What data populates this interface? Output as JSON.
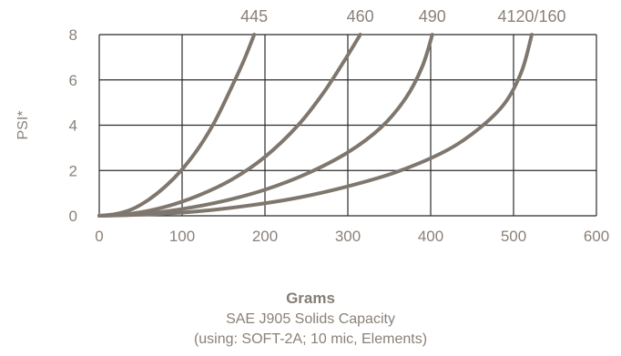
{
  "chart_data": {
    "type": "line",
    "title": "",
    "xlabel": "Grams",
    "ylabel": "PSI*",
    "subtitle_lines": [
      "SAE J905 Solids Capacity",
      "(using: SOFT-2A; 10 mic, Elements)"
    ],
    "xlim": [
      0,
      600
    ],
    "ylim": [
      0,
      8
    ],
    "xticks": [
      0,
      100,
      200,
      300,
      400,
      500,
      600
    ],
    "yticks": [
      0,
      2,
      4,
      6,
      8
    ],
    "grid": true,
    "line_color": "#7f776e",
    "series": [
      {
        "name": "445",
        "x": [
          0,
          20,
          40,
          60,
          80,
          100,
          120,
          140,
          160,
          175,
          187
        ],
        "y": [
          0,
          0.08,
          0.3,
          0.72,
          1.3,
          2.05,
          3.0,
          4.2,
          5.7,
          6.9,
          8.0
        ]
      },
      {
        "name": "460",
        "x": [
          0,
          40,
          80,
          120,
          160,
          200,
          240,
          270,
          295,
          315
        ],
        "y": [
          0,
          0.1,
          0.4,
          0.9,
          1.6,
          2.6,
          4.0,
          5.4,
          6.8,
          8.0
        ]
      },
      {
        "name": "490",
        "x": [
          0,
          50,
          100,
          150,
          200,
          250,
          300,
          340,
          370,
          390,
          402
        ],
        "y": [
          0,
          0.08,
          0.3,
          0.65,
          1.15,
          1.85,
          2.8,
          3.9,
          5.2,
          6.6,
          8.0
        ]
      },
      {
        "name": "4120/160",
        "x": [
          0,
          60,
          120,
          180,
          240,
          300,
          360,
          420,
          460,
          490,
          510,
          522
        ],
        "y": [
          0,
          0.06,
          0.2,
          0.45,
          0.8,
          1.3,
          1.95,
          2.9,
          3.9,
          5.0,
          6.4,
          8.0
        ]
      }
    ]
  }
}
